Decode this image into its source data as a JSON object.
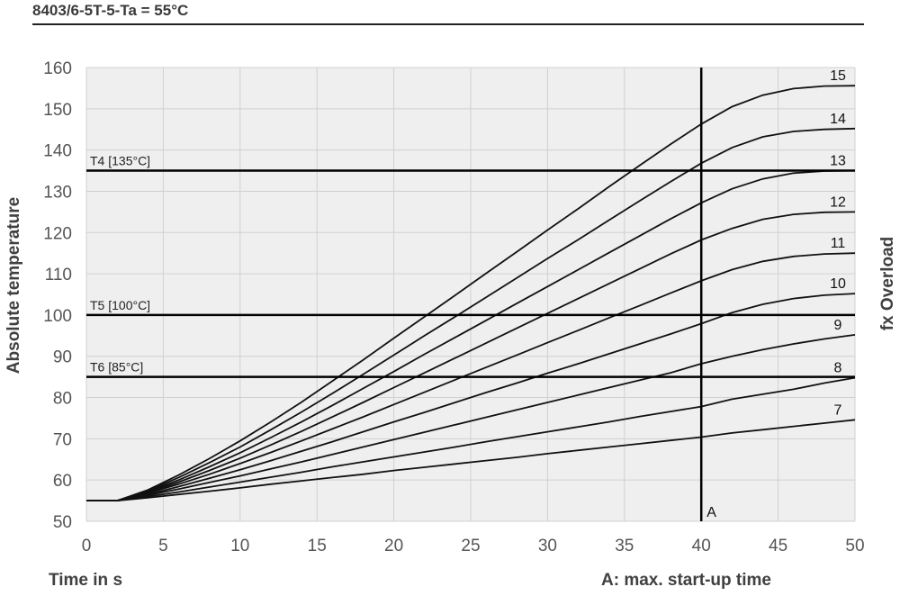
{
  "title": "8403/6-5T-5-Ta = 55°C",
  "chart_data": {
    "type": "line",
    "xlabel": "Time in s",
    "ylabel": "Absolute temperature",
    "y2label": "fx Overload",
    "xlim": [
      0,
      50
    ],
    "ylim": [
      50,
      160
    ],
    "xticks": [
      "0",
      "5",
      "10",
      "15",
      "20",
      "25",
      "30",
      "35",
      "40",
      "45",
      "50"
    ],
    "yticks": [
      "50",
      "60",
      "70",
      "80",
      "90",
      "100",
      "110",
      "120",
      "130",
      "140",
      "150",
      "160"
    ],
    "grid": true,
    "x": [
      0,
      2,
      4,
      6,
      8,
      10,
      12,
      14,
      16,
      18,
      20,
      22,
      24,
      26,
      28,
      30,
      32,
      34,
      36,
      38,
      40,
      42,
      44,
      46,
      48,
      50
    ],
    "series": [
      {
        "name": "7",
        "values": [
          55,
          55,
          55.7,
          56.5,
          57.3,
          58.1,
          59.0,
          59.8,
          60.6,
          61.4,
          62.3,
          63.1,
          63.9,
          64.7,
          65.5,
          66.4,
          67.2,
          68.0,
          68.8,
          69.6,
          70.4,
          71.4,
          72.2,
          73.0,
          73.8,
          74.6
        ]
      },
      {
        "name": "8",
        "values": [
          55,
          55,
          56.0,
          57.1,
          58.3,
          59.5,
          60.7,
          61.9,
          63.2,
          64.4,
          65.6,
          66.8,
          68.0,
          69.3,
          70.5,
          71.7,
          72.9,
          74.1,
          75.4,
          76.6,
          77.8,
          79.6,
          80.8,
          82.0,
          83.5,
          84.8
        ]
      },
      {
        "name": "9",
        "values": [
          55,
          55,
          56.3,
          57.8,
          59.4,
          61.0,
          62.7,
          64.4,
          66.2,
          68.0,
          69.8,
          71.6,
          73.4,
          75.2,
          77.0,
          78.8,
          80.6,
          82.4,
          84.2,
          86.0,
          88.2,
          90.0,
          91.6,
          93.0,
          94.2,
          95.2
        ]
      },
      {
        "name": "10",
        "values": [
          55,
          55,
          56.5,
          58.4,
          60.4,
          62.5,
          64.7,
          67.0,
          69.3,
          71.7,
          74.1,
          76.4,
          78.8,
          81.2,
          83.5,
          85.9,
          88.2,
          90.6,
          93.0,
          95.4,
          97.9,
          100.6,
          102.6,
          104.0,
          104.8,
          105.2
        ]
      },
      {
        "name": "11",
        "values": [
          55,
          55,
          56.8,
          59.0,
          61.4,
          64.0,
          66.7,
          69.5,
          72.4,
          75.3,
          78.3,
          81.3,
          84.3,
          87.3,
          90.3,
          93.3,
          96.3,
          99.3,
          102.3,
          105.3,
          108.3,
          111.0,
          113.0,
          114.2,
          114.8,
          115.0
        ]
      },
      {
        "name": "12",
        "values": [
          55,
          55,
          57.0,
          59.5,
          62.3,
          65.3,
          68.5,
          71.8,
          75.3,
          78.8,
          82.4,
          86.0,
          89.6,
          93.2,
          96.8,
          100.4,
          104.0,
          107.6,
          111.2,
          114.8,
          118.2,
          121.0,
          123.2,
          124.4,
          124.9,
          125.0
        ]
      },
      {
        "name": "13",
        "values": [
          55,
          55,
          57.2,
          60.0,
          63.2,
          66.6,
          70.3,
          74.1,
          78.1,
          82.2,
          86.3,
          90.5,
          94.6,
          98.7,
          102.8,
          106.9,
          111.0,
          115.1,
          119.2,
          123.3,
          127.2,
          130.6,
          133.0,
          134.4,
          134.9,
          135.0
        ]
      },
      {
        "name": "14",
        "values": [
          55,
          55,
          57.4,
          60.6,
          64.2,
          68.0,
          72.2,
          76.5,
          81.0,
          85.6,
          90.3,
          95.0,
          99.6,
          104.3,
          109.0,
          113.7,
          118.3,
          123.0,
          127.7,
          132.3,
          136.8,
          140.6,
          143.2,
          144.5,
          145.0,
          145.2
        ]
      },
      {
        "name": "15",
        "values": [
          55,
          55,
          57.6,
          61.2,
          65.2,
          69.5,
          74.1,
          78.9,
          84.0,
          89.1,
          94.4,
          99.6,
          104.8,
          110.1,
          115.3,
          120.6,
          125.8,
          131.1,
          136.3,
          141.4,
          146.3,
          150.5,
          153.3,
          154.9,
          155.5,
          155.6
        ]
      }
    ],
    "hlines": [
      {
        "label": "T4 [135°C]",
        "y": 135
      },
      {
        "label": "T5 [100°C]",
        "y": 100
      },
      {
        "label": "T6 [85°C]",
        "y": 85
      }
    ],
    "vline": {
      "label": "A",
      "x": 40
    },
    "annotation": "A: max. start-up time"
  }
}
